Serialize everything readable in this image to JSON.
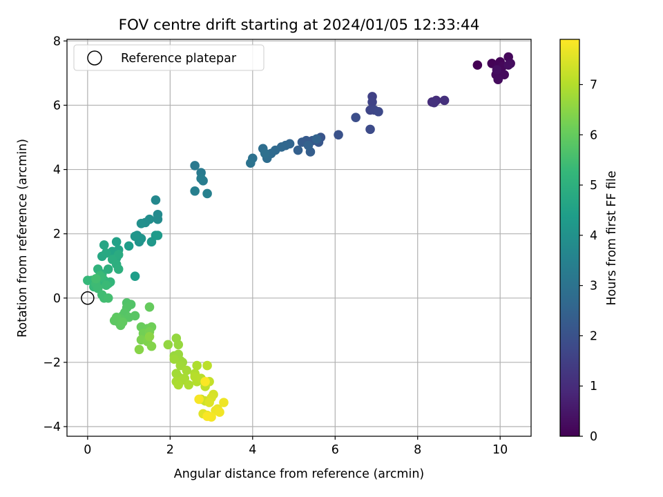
{
  "chart_data": {
    "type": "scatter",
    "title": "FOV centre drift starting at 2024/01/05 12:33:44",
    "xlabel": "Angular distance from reference (arcmin)",
    "ylabel": "Rotation from reference (arcmin)",
    "colorbar_label": "Hours from first FF file",
    "xlim": [
      -0.5,
      10.75
    ],
    "ylim": [
      -4.3,
      8.05
    ],
    "x_ticks": [
      0,
      2,
      4,
      6,
      8,
      10
    ],
    "x_tick_labels": [
      "0",
      "2",
      "4",
      "6",
      "8",
      "10"
    ],
    "y_ticks": [
      -4,
      -2,
      0,
      2,
      4,
      6,
      8
    ],
    "y_tick_labels": [
      "−4",
      "−2",
      "0",
      "2",
      "4",
      "6",
      "8"
    ],
    "colorbar_ticks": [
      0,
      1,
      2,
      3,
      4,
      5,
      6,
      7
    ],
    "colorbar_range": [
      0,
      7.9
    ],
    "colormap": [
      "#440154",
      "#482878",
      "#3e4989",
      "#31688e",
      "#26828e",
      "#1f9e89",
      "#35b779",
      "#6ece58",
      "#b5de2b",
      "#fde725"
    ],
    "grid": true,
    "legend": {
      "position": "top-left",
      "entries": [
        "Reference platepar"
      ]
    },
    "reference_point": {
      "x": 0,
      "y": 0,
      "style": "hollow-circle"
    },
    "series": [
      {
        "x": [
          9.45,
          9.8,
          9.95,
          10.0,
          10.05,
          10.2,
          9.9,
          10.1,
          9.95,
          10.25,
          10.2,
          9.92
        ],
        "y": [
          7.25,
          7.3,
          7.25,
          7.35,
          7.2,
          7.5,
          6.95,
          6.95,
          6.8,
          7.3,
          7.25,
          7.1
        ],
        "c": [
          0.0,
          0.05,
          0.1,
          0.1,
          0.15,
          0.15,
          0.2,
          0.2,
          0.25,
          0.25,
          0.3,
          0.3
        ]
      },
      {
        "x": [
          8.35,
          8.45,
          8.65,
          8.4
        ],
        "y": [
          6.1,
          6.15,
          6.15,
          6.08
        ],
        "c": [
          1.0,
          1.05,
          1.1,
          1.15
        ]
      },
      {
        "x": [
          6.9,
          6.9,
          6.85,
          6.95,
          7.05,
          6.85,
          6.5,
          6.08
        ],
        "y": [
          6.27,
          6.1,
          5.85,
          5.85,
          5.8,
          5.25,
          5.62,
          5.08
        ],
        "c": [
          1.55,
          1.6,
          1.65,
          1.7,
          1.75,
          1.8,
          1.9,
          2.0
        ]
      },
      {
        "x": [
          5.65,
          5.6,
          5.45,
          5.3,
          5.2,
          5.4,
          5.1,
          5.35,
          5.55,
          4.9,
          4.8,
          4.7,
          4.55,
          4.45,
          4.35,
          4.25,
          4.3,
          4.0,
          3.95
        ],
        "y": [
          5.0,
          4.85,
          4.9,
          4.9,
          4.85,
          4.55,
          4.6,
          4.75,
          4.95,
          4.8,
          4.75,
          4.7,
          4.6,
          4.5,
          4.35,
          4.65,
          4.5,
          4.35,
          4.2
        ],
        "c": [
          2.1,
          2.15,
          2.2,
          2.25,
          2.3,
          2.35,
          2.4,
          2.45,
          2.5,
          2.55,
          2.6,
          2.65,
          2.7,
          2.75,
          2.8,
          2.85,
          2.9,
          2.95,
          3.0
        ]
      },
      {
        "x": [
          2.6,
          2.75,
          2.8,
          2.75,
          2.6,
          2.9
        ],
        "y": [
          4.12,
          3.9,
          3.65,
          3.72,
          3.33,
          3.25
        ],
        "c": [
          3.2,
          3.25,
          3.3,
          3.35,
          3.4,
          3.45
        ]
      },
      {
        "x": [
          1.65,
          1.7,
          1.7,
          1.5,
          1.4,
          1.3,
          1.2,
          1.25,
          1.3,
          1.15,
          1.55,
          1.65,
          1.7,
          1.0,
          1.15
        ],
        "y": [
          3.05,
          2.6,
          2.45,
          2.45,
          2.35,
          2.32,
          1.95,
          1.75,
          1.85,
          1.92,
          1.75,
          1.95,
          1.95,
          1.62,
          0.68
        ],
        "c": [
          3.7,
          3.75,
          3.8,
          3.85,
          3.9,
          3.95,
          4.0,
          4.05,
          4.1,
          4.15,
          4.2,
          4.25,
          4.3,
          4.35,
          4.4
        ]
      },
      {
        "x": [
          0.7,
          0.75,
          0.6,
          0.4,
          0.35,
          0.45,
          0.7,
          0.75,
          0.6,
          0.7,
          0.75,
          0.5,
          0.35,
          0.3,
          0.25,
          0.2,
          0.3,
          0.4,
          0.5,
          0.55,
          0.1,
          0.0,
          0.15,
          0.35,
          0.45,
          0.3,
          0.2,
          0.25,
          0.35,
          0.4,
          0.2,
          0.5
        ],
        "y": [
          1.75,
          1.5,
          1.45,
          1.65,
          1.3,
          1.4,
          1.25,
          1.35,
          1.2,
          1.05,
          0.9,
          0.9,
          0.75,
          0.6,
          0.9,
          0.5,
          0.45,
          0.55,
          0.45,
          0.5,
          0.55,
          0.55,
          0.35,
          0.65,
          0.4,
          0.7,
          0.45,
          0.3,
          0.1,
          0.0,
          0.6,
          0.0
        ],
        "c": [
          4.5,
          4.55,
          4.6,
          4.65,
          4.7,
          4.75,
          4.8,
          4.85,
          4.9,
          4.95,
          5.0,
          5.0,
          5.05,
          5.05,
          5.1,
          5.1,
          5.15,
          5.15,
          5.2,
          5.2,
          5.25,
          5.25,
          5.3,
          5.3,
          5.35,
          5.35,
          5.4,
          5.4,
          5.45,
          5.45,
          5.5,
          5.5
        ]
      },
      {
        "x": [
          0.95,
          1.05,
          0.95,
          0.85,
          0.9,
          1.0,
          1.15,
          0.8,
          0.75,
          0.65,
          0.7,
          0.8,
          0.85,
          1.5,
          1.3,
          1.45,
          1.55,
          1.35,
          1.5,
          1.3,
          1.45,
          1.55,
          1.25,
          1.5
        ],
        "y": [
          -0.15,
          -0.2,
          -0.3,
          -0.55,
          -0.45,
          -0.6,
          -0.55,
          -0.65,
          -0.75,
          -0.7,
          -0.6,
          -0.85,
          -0.75,
          -0.28,
          -0.9,
          -0.95,
          -0.9,
          -1.1,
          -1.05,
          -1.3,
          -1.35,
          -1.5,
          -1.6,
          -1.2
        ],
        "c": [
          5.7,
          5.72,
          5.74,
          5.76,
          5.78,
          5.8,
          5.82,
          5.84,
          5.86,
          5.88,
          5.9,
          5.92,
          5.94,
          6.0,
          6.05,
          6.1,
          6.15,
          6.2,
          6.25,
          6.3,
          6.35,
          6.4,
          6.45,
          6.5
        ]
      },
      {
        "x": [
          1.95,
          2.15,
          2.2,
          2.1,
          2.2,
          2.25,
          2.3,
          2.1,
          2.25,
          2.15,
          2.2,
          2.4,
          2.35,
          2.15,
          2.3,
          2.2,
          2.45,
          2.65,
          2.6,
          2.7,
          2.65,
          2.85,
          2.6,
          2.75
        ],
        "y": [
          -1.45,
          -1.25,
          -1.45,
          -1.8,
          -1.75,
          -1.95,
          -2.0,
          -1.9,
          -2.1,
          -2.35,
          -2.45,
          -2.25,
          -2.5,
          -2.6,
          -2.55,
          -2.7,
          -2.7,
          -2.1,
          -2.35,
          -2.55,
          -2.6,
          -2.65,
          -2.45,
          -2.5
        ],
        "c": [
          6.6,
          6.62,
          6.64,
          6.66,
          6.68,
          6.7,
          6.72,
          6.74,
          6.76,
          6.78,
          6.8,
          6.82,
          6.84,
          6.86,
          6.88,
          6.9,
          6.92,
          6.94,
          6.96,
          6.98,
          7.0,
          7.02,
          7.04,
          7.06
        ]
      },
      {
        "x": [
          2.9,
          2.85,
          2.95,
          2.75,
          2.85,
          2.95,
          3.05,
          3.0,
          2.95,
          2.8,
          2.9,
          3.15,
          3.1,
          3.3,
          3.2,
          3.0,
          2.7,
          2.9,
          2.85
        ],
        "y": [
          -2.1,
          -2.75,
          -2.6,
          -3.15,
          -3.2,
          -3.2,
          -3.0,
          -3.1,
          -3.25,
          -3.6,
          -3.65,
          -3.45,
          -3.5,
          -3.25,
          -3.55,
          -3.7,
          -3.15,
          -3.68,
          -2.6
        ],
        "c": [
          7.1,
          7.15,
          7.2,
          7.25,
          7.3,
          7.35,
          7.4,
          7.45,
          7.5,
          7.55,
          7.6,
          7.65,
          7.7,
          7.72,
          7.75,
          7.8,
          7.82,
          7.85,
          7.88
        ]
      }
    ]
  }
}
